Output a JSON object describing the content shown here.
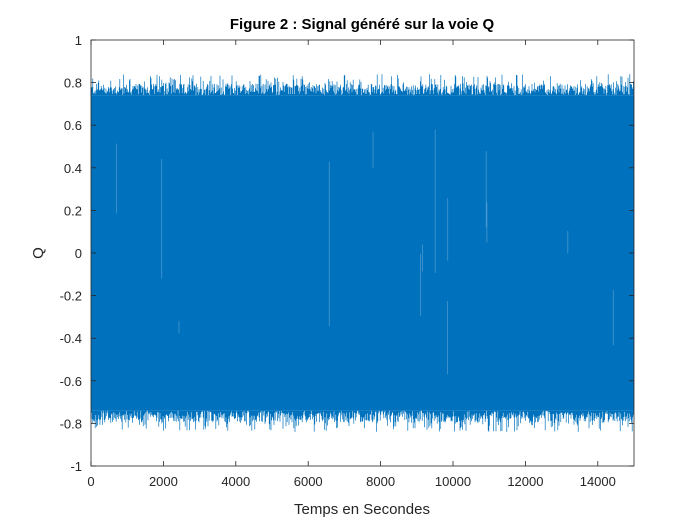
{
  "chart_data": {
    "type": "line",
    "title": "Figure 2 : Signal généré sur la voie Q",
    "xlabel": "Temps en Secondes",
    "ylabel": "Q",
    "xlim": [
      0,
      15000
    ],
    "ylim": [
      -1,
      1
    ],
    "x_ticks": [
      "0",
      "2000",
      "4000",
      "6000",
      "8000",
      "10000",
      "12000",
      "14000"
    ],
    "y_ticks": [
      "1",
      "0.8",
      "0.6",
      "0.4",
      "0.2",
      "0",
      "-0.2",
      "-0.4",
      "-0.6",
      "-0.8",
      "-1"
    ],
    "grid": false,
    "series": [
      {
        "color": "#0072BD",
        "x_range": [
          0,
          15000
        ],
        "upper_envelope": 0.74,
        "upper_peak": 0.84,
        "lower_envelope": -0.74,
        "lower_peak": -0.84
      }
    ]
  }
}
